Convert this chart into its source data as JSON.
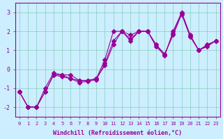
{
  "xlabel": "Windchill (Refroidissement éolien,°C)",
  "background_color": "#cceeff",
  "grid_color": "#aaddcc",
  "line_color": "#990099",
  "xlim": [
    0,
    23
  ],
  "ylim": [
    -2.5,
    3.5
  ],
  "xticks": [
    0,
    1,
    2,
    3,
    4,
    5,
    6,
    7,
    8,
    9,
    10,
    11,
    12,
    13,
    14,
    15,
    16,
    17,
    18,
    19,
    20,
    21,
    22,
    23
  ],
  "yticks": [
    -2,
    -1,
    0,
    1,
    2,
    3
  ],
  "series": [
    [
      -1.2,
      -2.0,
      -2.0,
      -1.2,
      -0.3,
      -0.3,
      -0.3,
      -0.6,
      -0.6,
      -0.5,
      0.5,
      2.0,
      2.0,
      1.8,
      2.0,
      2.0,
      1.3,
      0.7,
      2.0,
      3.0,
      1.8,
      1.0,
      1.3,
      1.5
    ],
    [
      -1.2,
      -2.0,
      -2.0,
      -1.2,
      -0.3,
      -0.4,
      -0.5,
      -0.6,
      -0.6,
      -0.5,
      0.2,
      1.3,
      2.0,
      1.5,
      2.0,
      2.0,
      1.3,
      0.8,
      1.8,
      2.9,
      1.7,
      1.0,
      1.2,
      1.5
    ],
    [
      -1.2,
      -2.0,
      -2.0,
      -1.0,
      -0.2,
      -0.3,
      -0.5,
      -0.7,
      -0.65,
      -0.55,
      0.3,
      1.5,
      2.0,
      1.6,
      2.0,
      2.0,
      1.2,
      0.75,
      1.9,
      2.95,
      1.75,
      1.0,
      1.25,
      1.5
    ]
  ]
}
